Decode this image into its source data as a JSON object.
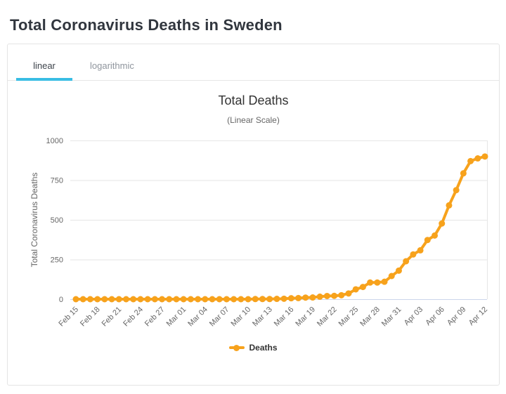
{
  "page": {
    "title": "Total Coronavirus Deaths in Sweden"
  },
  "tabs": [
    {
      "label": "linear",
      "active": true
    },
    {
      "label": "logarithmic",
      "active": false
    }
  ],
  "colors": {
    "accent": "#39bde4",
    "series_orange": "#f7a21c",
    "gridline": "#e6e6e6",
    "axis_line": "#ccd6eb"
  },
  "chart_data": {
    "type": "line",
    "title": "Total Deaths",
    "subtitle": "(Linear Scale)",
    "xlabel": "",
    "ylabel": "Total Coronavirus Deaths",
    "ylim": [
      0,
      1000
    ],
    "yticks": [
      0,
      250,
      500,
      750,
      1000
    ],
    "xtick_step": 3,
    "grid": "horizontal",
    "legend_position": "bottom",
    "categories": [
      "Feb 15",
      "Feb 16",
      "Feb 17",
      "Feb 18",
      "Feb 19",
      "Feb 20",
      "Feb 21",
      "Feb 22",
      "Feb 23",
      "Feb 24",
      "Feb 25",
      "Feb 26",
      "Feb 27",
      "Feb 28",
      "Feb 29",
      "Mar 01",
      "Mar 02",
      "Mar 03",
      "Mar 04",
      "Mar 05",
      "Mar 06",
      "Mar 07",
      "Mar 08",
      "Mar 09",
      "Mar 10",
      "Mar 11",
      "Mar 12",
      "Mar 13",
      "Mar 14",
      "Mar 15",
      "Mar 16",
      "Mar 17",
      "Mar 18",
      "Mar 19",
      "Mar 20",
      "Mar 21",
      "Mar 22",
      "Mar 23",
      "Mar 24",
      "Mar 25",
      "Mar 26",
      "Mar 27",
      "Mar 28",
      "Mar 29",
      "Mar 30",
      "Mar 31",
      "Apr 01",
      "Apr 02",
      "Apr 03",
      "Apr 04",
      "Apr 05",
      "Apr 06",
      "Apr 07",
      "Apr 08",
      "Apr 09",
      "Apr 10",
      "Apr 11",
      "Apr 12"
    ],
    "series": [
      {
        "name": "Deaths",
        "color": "#f7a21c",
        "values": [
          0,
          0,
          0,
          0,
          0,
          0,
          0,
          0,
          0,
          0,
          0,
          0,
          0,
          0,
          0,
          0,
          0,
          0,
          0,
          0,
          0,
          0,
          0,
          0,
          0,
          1,
          1,
          1,
          2,
          3,
          6,
          7,
          10,
          11,
          16,
          20,
          21,
          25,
          36,
          62,
          77,
          105,
          105,
          110,
          146,
          180,
          239,
          282,
          308,
          373,
          401,
          477,
          591,
          687,
          793,
          870,
          887,
          899
        ]
      }
    ]
  }
}
